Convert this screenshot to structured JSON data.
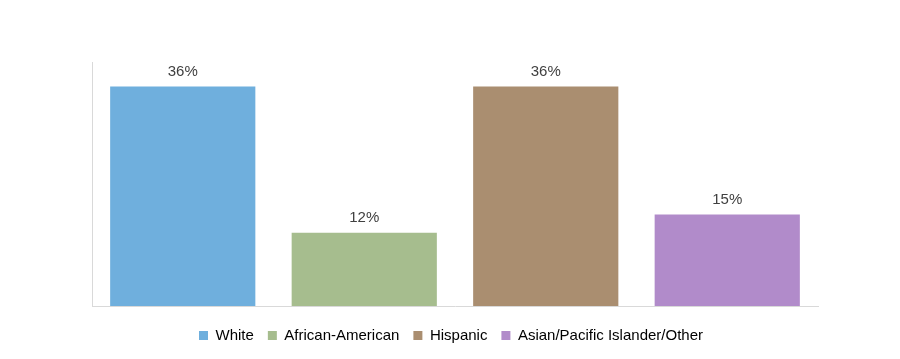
{
  "chart_data": {
    "type": "bar",
    "categories": [
      "White",
      "African-American",
      "Hispanic",
      "Asian/Pacific Islander/Other"
    ],
    "values": [
      36,
      12,
      36,
      15
    ],
    "value_labels": [
      "36%",
      "12%",
      "36%",
      "15%"
    ],
    "colors": [
      "#6fafdd",
      "#a6bd8e",
      "#aa8e70",
      "#b18bca"
    ],
    "ylim": [
      0,
      40
    ],
    "grid": false,
    "legend": "bottom",
    "data_labels": true,
    "tick_labels": false
  }
}
